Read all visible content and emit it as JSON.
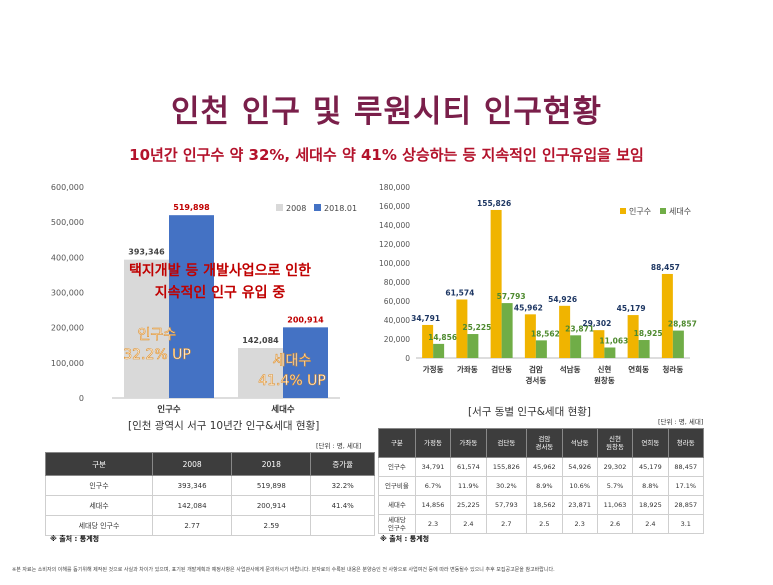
{
  "title": "인천 인구 및 루원시티 인구현황",
  "subtitle": "10년간 인구수 약 32%, 세대수 약 41% 상승하는 등 지속적인 인구유입을 보임",
  "chart_data": [
    {
      "type": "bar",
      "categories": [
        "인구수",
        "세대수"
      ],
      "series": [
        {
          "name": "2008",
          "values": [
            393346,
            142084
          ],
          "labels": [
            "393,346",
            "142,084"
          ],
          "color": "#d9d9d9"
        },
        {
          "name": "2018.01",
          "values": [
            519898,
            200914
          ],
          "labels": [
            "519,898",
            "200,914"
          ],
          "color": "#4472c4"
        }
      ],
      "ylim": [
        0,
        600000
      ],
      "yticks": [
        "0",
        "100,000",
        "200,000",
        "300,000",
        "400,000",
        "500,000",
        "600,000"
      ],
      "legend_position": "top-right",
      "annotations": {
        "main_line1": "택지개발 등 개발사업으로 인한",
        "main_line2": "지속적인 인구 유입 중",
        "pop_line1": "인구수",
        "pop_line2": "32.2% UP",
        "house_line1": "세대수",
        "house_line2": "41.4% UP"
      }
    },
    {
      "type": "bar",
      "categories": [
        "가정동",
        "가좌동",
        "검단동",
        "검암 경서동",
        "석남동",
        "신현 원창동",
        "연희동",
        "청라동"
      ],
      "series": [
        {
          "name": "인구수",
          "values": [
            34791,
            61574,
            155826,
            45962,
            54926,
            29302,
            45179,
            88457
          ],
          "labels": [
            "34,791",
            "61,574",
            "155,826",
            "45,962",
            "54,926",
            "29,302",
            "45,179",
            "88,457"
          ],
          "color": "#f0b400"
        },
        {
          "name": "세대수",
          "values": [
            14856,
            25225,
            57793,
            18562,
            23871,
            11063,
            18925,
            28857
          ],
          "labels": [
            "14,856",
            "25,225",
            "57,793",
            "18,562",
            "23,871",
            "11,063",
            "18,925",
            "28,857"
          ],
          "color": "#70ad47"
        }
      ],
      "ylim": [
        0,
        180000
      ],
      "yticks": [
        "0",
        "20,000",
        "40,000",
        "60,000",
        "80,000",
        "100,000",
        "120,000",
        "140,000",
        "160,000",
        "180,000"
      ],
      "legend_position": "top-right"
    }
  ],
  "caption_left": "[인천 광역시 서구 10년간 인구&세대 현황]",
  "caption_right": "[서구 동별 인구&세대 현황]",
  "unit_left": "[단위 : 명, 세대]",
  "unit_right": "[단위 : 명, 세대]",
  "source_left": "※ 출처 : 통계청",
  "source_right": "※ 출처 : 통계청",
  "table1": {
    "headers": [
      "구분",
      "2008",
      "2018",
      "증가율"
    ],
    "rows": [
      [
        "인구수",
        "393,346",
        "519,898",
        "32.2%"
      ],
      [
        "세대수",
        "142,084",
        "200,914",
        "41.4%"
      ],
      [
        "세대당 인구수",
        "2.77",
        "2.59",
        ""
      ]
    ]
  },
  "table2": {
    "headers": [
      "구분",
      "가정동",
      "가좌동",
      "검단동",
      "검암\n경서동",
      "석남동",
      "신현\n원창동",
      "연희동",
      "청라동"
    ],
    "rows": [
      [
        "인구수",
        "34,791",
        "61,574",
        "155,826",
        "45,962",
        "54,926",
        "29,302",
        "45,179",
        "88,457"
      ],
      [
        "인구비율",
        "6.7%",
        "11.9%",
        "30.2%",
        "8.9%",
        "10.6%",
        "5.7%",
        "8.8%",
        "17.1%"
      ],
      [
        "세대수",
        "14,856",
        "25,225",
        "57,793",
        "18,562",
        "23,871",
        "11,063",
        "18,925",
        "28,857"
      ],
      [
        "세대당\n인구수",
        "2.3",
        "2.4",
        "2.7",
        "2.5",
        "2.3",
        "2.6",
        "2.4",
        "3.1"
      ]
    ]
  },
  "footnote": "※본 자료는 소비자의 이해를 돕기위해 제작된 것으로 사실과 차이가 있으며, 표기된 개발계획과 예정사항은 사업관사에게 문의하시기 바랍니다. 본자료의 수록된 내용은 분양승인 전 사항으로 사업여건 등에 따라 변동될수 있으니 추후 모집공고문을 참고바랍니다."
}
